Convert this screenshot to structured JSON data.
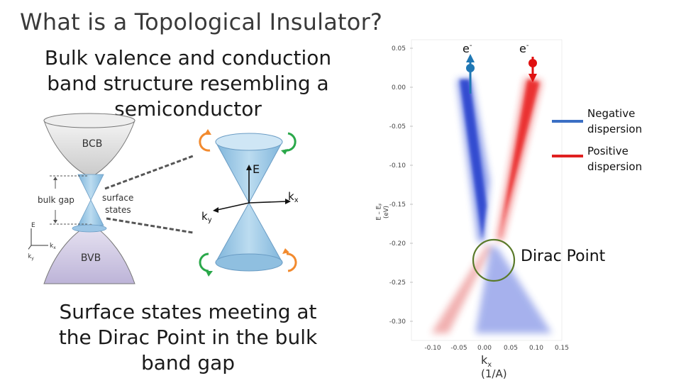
{
  "title": "What is a Topological Insulator?",
  "bulk_text": "Bulk valence and conduction band structure resembling a semiconductor",
  "surface_text": "Surface states meeting at the Dirac Point in the bulk band gap",
  "diagram": {
    "bcb": "BCB",
    "bvb": "BVB",
    "bulk_gap": "bulk gap",
    "surface_states_1": "surface",
    "surface_states_2": "states",
    "axis_e": "E",
    "axis_kx": "k",
    "axis_ky": "k",
    "sub_x": "x",
    "sub_y": "y",
    "cone_e": "E",
    "cone_kx": "k",
    "cone_ky": "k"
  },
  "arpes": {
    "ylabel": "E – E",
    "ylabel_sub": "F",
    "ylabel_unit": "(eV)",
    "xlabel": "k",
    "xlabel_sub": "x",
    "xlabel_unit": "(1/A)",
    "electron_label": "e",
    "electron_sup": "-",
    "y_ticks": [
      "0.05",
      "0.00",
      "-0.05",
      "-0.10",
      "-0.15",
      "-0.20",
      "-0.25",
      "-0.30"
    ],
    "x_ticks": [
      "-0.10",
      "-0.05",
      "0.00",
      "0.05",
      "0.10",
      "0.15"
    ],
    "legend": [
      {
        "label_1": "Negative",
        "label_2": "dispersion",
        "color": "#3b6fc4"
      },
      {
        "label_1": "Positive",
        "label_2": "dispersion",
        "color": "#e02020"
      }
    ],
    "dirac_label": "Dirac Point",
    "colors": {
      "blue": "#1f3fd0",
      "red": "#e81818",
      "circle": "#5a7a2a",
      "electron_blue": "#1f77b4",
      "electron_red": "#e01010"
    }
  }
}
